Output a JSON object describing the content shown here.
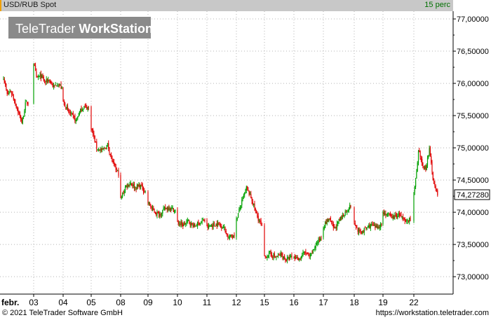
{
  "header": {
    "symbol": "USD/RUB Spot",
    "interval": "15 perc"
  },
  "watermark": {
    "text_light": "TeleTrader ",
    "text_bold": "WorkStation"
  },
  "footer": {
    "copyright": "© 2021  TeleTrader Software GmbH",
    "url": "https://workstation.teletrader.com"
  },
  "colors": {
    "up": "#00a000",
    "down": "#e00000",
    "grid": "#b4b4b4",
    "axis": "#000000",
    "header_bg": "#c8c8c8",
    "header_accent": "#f0a000"
  },
  "chart_data": {
    "type": "candlestick",
    "y_ticks": [
      "77,00000",
      "76,50000",
      "76,00000",
      "75,50000",
      "75,00000",
      "74,50000",
      "74,00000",
      "73,50000",
      "73,00000"
    ],
    "y_tick_values": [
      77.0,
      76.5,
      76.0,
      75.5,
      75.0,
      74.5,
      74.0,
      73.5,
      73.0
    ],
    "ylim": [
      72.73,
      77.12
    ],
    "last_price_label": "74,27280",
    "last_price": 74.2728,
    "x_tick_labels": [
      "febr.",
      "03",
      "04",
      "05",
      "08",
      "09",
      "10",
      "11",
      "12",
      "15",
      "16",
      "17",
      "18",
      "19",
      "22"
    ],
    "series": [
      {
        "day": "febr.",
        "points": [
          [
            0,
            76.1
          ],
          [
            0.15,
            75.82
          ],
          [
            0.3,
            75.88
          ],
          [
            0.45,
            75.72
          ],
          [
            0.6,
            75.56
          ],
          [
            0.75,
            75.38
          ],
          [
            0.9,
            75.7
          ]
        ]
      },
      {
        "day": "03",
        "points": [
          [
            0,
            76.32
          ],
          [
            0.1,
            76.08
          ],
          [
            0.25,
            76.12
          ],
          [
            0.4,
            76.02
          ],
          [
            0.55,
            76.06
          ],
          [
            0.7,
            75.94
          ],
          [
            0.85,
            76.0
          ],
          [
            1.0,
            75.92
          ]
        ]
      },
      {
        "day": "04",
        "points": [
          [
            0,
            75.72
          ],
          [
            0.2,
            75.56
          ],
          [
            0.35,
            75.5
          ],
          [
            0.5,
            75.42
          ],
          [
            0.65,
            75.56
          ],
          [
            0.8,
            75.64
          ],
          [
            1.0,
            75.62
          ]
        ]
      },
      {
        "day": "05",
        "points": [
          [
            0,
            75.32
          ],
          [
            0.2,
            75.0
          ],
          [
            0.4,
            74.95
          ],
          [
            0.6,
            75.05
          ],
          [
            0.8,
            74.75
          ],
          [
            1.0,
            74.6
          ]
        ]
      },
      {
        "day": "08",
        "points": [
          [
            0,
            74.2
          ],
          [
            0.2,
            74.4
          ],
          [
            0.4,
            74.46
          ],
          [
            0.6,
            74.38
          ],
          [
            0.8,
            74.42
          ],
          [
            1.0,
            74.32
          ]
        ]
      },
      {
        "day": "09",
        "points": [
          [
            0,
            74.15
          ],
          [
            0.2,
            74.02
          ],
          [
            0.4,
            73.96
          ],
          [
            0.6,
            74.05
          ],
          [
            0.8,
            74.08
          ],
          [
            1.0,
            74.02
          ]
        ]
      },
      {
        "day": "10",
        "points": [
          [
            0,
            73.84
          ],
          [
            0.2,
            73.8
          ],
          [
            0.4,
            73.86
          ],
          [
            0.6,
            73.78
          ],
          [
            0.8,
            73.84
          ],
          [
            1.0,
            73.88
          ]
        ]
      },
      {
        "day": "11",
        "points": [
          [
            0,
            73.76
          ],
          [
            0.2,
            73.8
          ],
          [
            0.4,
            73.82
          ],
          [
            0.6,
            73.78
          ],
          [
            0.8,
            73.6
          ],
          [
            1.0,
            73.66
          ]
        ]
      },
      {
        "day": "12",
        "points": [
          [
            0,
            73.88
          ],
          [
            0.2,
            74.15
          ],
          [
            0.4,
            74.38
          ],
          [
            0.6,
            74.2
          ],
          [
            0.8,
            73.95
          ],
          [
            1.0,
            73.78
          ]
        ]
      },
      {
        "day": "15",
        "points": [
          [
            0,
            73.3
          ],
          [
            0.2,
            73.36
          ],
          [
            0.4,
            73.3
          ],
          [
            0.6,
            73.34
          ],
          [
            0.8,
            73.26
          ],
          [
            1.0,
            73.3
          ]
        ]
      },
      {
        "day": "16",
        "points": [
          [
            0,
            73.3
          ],
          [
            0.2,
            73.28
          ],
          [
            0.4,
            73.38
          ],
          [
            0.6,
            73.3
          ],
          [
            0.8,
            73.5
          ],
          [
            1.0,
            73.62
          ]
        ]
      },
      {
        "day": "17",
        "points": [
          [
            0,
            73.78
          ],
          [
            0.2,
            73.9
          ],
          [
            0.4,
            73.74
          ],
          [
            0.6,
            73.88
          ],
          [
            0.8,
            74.0
          ],
          [
            1.0,
            74.1
          ]
        ]
      },
      {
        "day": "18",
        "points": [
          [
            0,
            73.82
          ],
          [
            0.2,
            73.68
          ],
          [
            0.4,
            73.74
          ],
          [
            0.6,
            73.8
          ],
          [
            0.8,
            73.76
          ],
          [
            1.0,
            73.82
          ]
        ]
      },
      {
        "day": "19",
        "points": [
          [
            0,
            74.0
          ],
          [
            0.2,
            73.95
          ],
          [
            0.4,
            73.92
          ],
          [
            0.6,
            73.97
          ],
          [
            0.8,
            73.85
          ],
          [
            1.0,
            73.9
          ]
        ]
      },
      {
        "day": "22",
        "points": [
          [
            0,
            74.3
          ],
          [
            0.1,
            74.55
          ],
          [
            0.2,
            74.95
          ],
          [
            0.35,
            74.72
          ],
          [
            0.5,
            74.68
          ],
          [
            0.65,
            74.98
          ],
          [
            0.8,
            74.55
          ],
          [
            0.9,
            74.38
          ],
          [
            1.0,
            74.27
          ]
        ]
      }
    ]
  }
}
